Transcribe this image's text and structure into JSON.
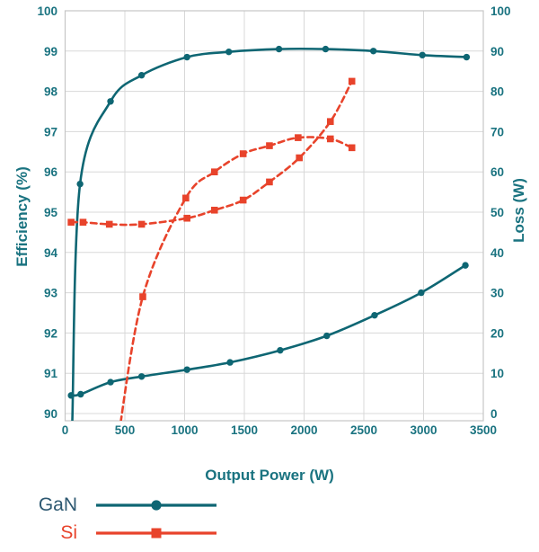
{
  "colors": {
    "gan_curve": "#0E6673",
    "gan_legend_text": "#2D5871",
    "si_curve": "#E8432B",
    "axis_text": "#1A7380",
    "gridline": "#D8D8D8",
    "plot_border": "#C6C6C6",
    "background": "#FFFFFF"
  },
  "chart_data": {
    "type": "line",
    "grid": true,
    "x_axis": {
      "label": "Output Power (W)",
      "min": 0,
      "max": 3500,
      "ticks": [
        0,
        500,
        1000,
        1500,
        2000,
        2500,
        3000,
        3500
      ]
    },
    "left_axis": {
      "label": "Efficiency (%)",
      "min": 90,
      "max": 100,
      "ticks": [
        90,
        91,
        92,
        93,
        94,
        95,
        96,
        97,
        98,
        99,
        100
      ]
    },
    "right_axis": {
      "label": "Loss (W)",
      "min": 0,
      "max": 100,
      "ticks": [
        0,
        10,
        20,
        30,
        40,
        50,
        60,
        70,
        80,
        90,
        100
      ]
    },
    "series": [
      {
        "id": "gan-efficiency",
        "name": "GaN",
        "quantity": "Efficiency (%)",
        "axis": "left",
        "line": "solid",
        "marker": "circle",
        "color": "#0E6673",
        "anchor_start": true,
        "x": [
          60,
          125,
          380,
          640,
          1020,
          1370,
          1790,
          2180,
          2580,
          2990,
          3360
        ],
        "y": [
          89.8,
          95.7,
          97.75,
          98.4,
          98.85,
          98.98,
          99.05,
          99.05,
          99.0,
          98.9,
          98.85
        ]
      },
      {
        "id": "gan-loss",
        "name": "GaN",
        "quantity": "Loss (W)",
        "axis": "right",
        "line": "solid",
        "marker": "circle",
        "color": "#0E6673",
        "anchor_start": false,
        "x": [
          50,
          130,
          380,
          640,
          1020,
          1380,
          1800,
          2190,
          2590,
          2980,
          3350
        ],
        "y": [
          4.5,
          4.8,
          7.8,
          9.2,
          10.9,
          12.7,
          15.7,
          19.3,
          24.4,
          30.0,
          36.8
        ]
      },
      {
        "id": "si-efficiency",
        "name": "Si",
        "quantity": "Efficiency (%)",
        "axis": "left",
        "line": "dashed",
        "marker": "square",
        "color": "#E8432B",
        "anchor_start": true,
        "x": [
          440,
          650,
          1010,
          1250,
          1490,
          1710,
          1950,
          2220,
          2400
        ],
        "y": [
          89.3,
          92.9,
          95.35,
          96.0,
          96.45,
          96.65,
          96.85,
          96.82,
          96.6
        ]
      },
      {
        "id": "si-loss",
        "name": "Si",
        "quantity": "Loss (W)",
        "axis": "right",
        "line": "dashed",
        "marker": "square",
        "color": "#E8432B",
        "anchor_start": false,
        "x": [
          50,
          150,
          370,
          640,
          1020,
          1250,
          1490,
          1710,
          1960,
          2220,
          2400
        ],
        "y": [
          47.5,
          47.5,
          47.0,
          47.0,
          48.5,
          50.5,
          53.0,
          57.5,
          63.5,
          72.5,
          82.5
        ]
      }
    ],
    "legend": {
      "position": "bottom-left",
      "entries": [
        {
          "label": "GaN",
          "text_color": "#2D5871",
          "line_color": "#0E6673",
          "marker": "circle",
          "line": "solid"
        },
        {
          "label": "Si",
          "text_color": "#E8432B",
          "line_color": "#E8432B",
          "marker": "square",
          "line": "solid"
        }
      ]
    }
  }
}
